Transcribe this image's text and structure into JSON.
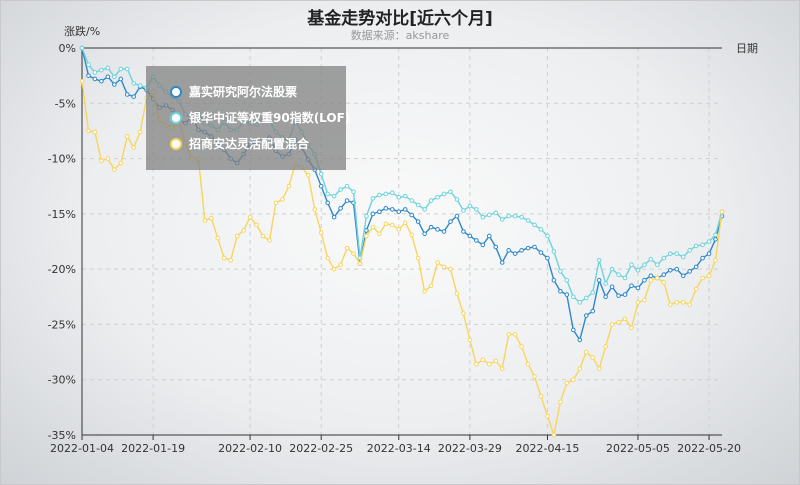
{
  "title": "基金走势对比[近六个月]",
  "subtitle": "数据来源：akshare",
  "chart_data": {
    "type": "line",
    "ylabel": "涨跌/%",
    "xlabel": "日期",
    "ylim": [
      -35,
      0
    ],
    "y_ticks": [
      "0%",
      "-5%",
      "-10%",
      "-15%",
      "-20%",
      "-25%",
      "-30%",
      "-35%"
    ],
    "x_ticks": [
      "2022-01-04",
      "2022-01-19",
      "2022-02-10",
      "2022-02-25",
      "2022-03-14",
      "2022-03-29",
      "2022-04-15",
      "2022-05-05",
      "2022-05-20"
    ],
    "x_count": 100,
    "legend_position": "top-left",
    "colors": {
      "s1": "#2e88c9",
      "s2": "#6ed3dc",
      "s3": "#f8d55c"
    },
    "series": [
      {
        "name": "嘉实研究阿尔法股票",
        "color": "#2e88c9",
        "values": [
          0.0,
          -2.5,
          -2.8,
          -3.0,
          -2.6,
          -3.3,
          -2.8,
          -4.2,
          -4.4,
          -3.5,
          -3.8,
          -4.6,
          -5.4,
          -5.2,
          -5.6,
          -6.5,
          -6.8,
          -6.2,
          -7.4,
          -7.6,
          -8.0,
          -8.6,
          -9.2,
          -10.0,
          -10.4,
          -9.6,
          -8.7,
          -8.6,
          -8.4,
          -8.1,
          -9.3,
          -9.8,
          -9.6,
          -8.3,
          -9.0,
          -10.1,
          -11.0,
          -12.5,
          -14.0,
          -15.3,
          -14.5,
          -13.8,
          -14.0,
          -19.5,
          -16.5,
          -15.0,
          -14.8,
          -14.5,
          -14.6,
          -14.8,
          -14.6,
          -15.1,
          -15.7,
          -16.8,
          -16.2,
          -16.4,
          -16.6,
          -15.7,
          -15.2,
          -16.6,
          -17.0,
          -17.4,
          -17.8,
          -17.0,
          -18.0,
          -19.4,
          -18.3,
          -18.6,
          -18.3,
          -18.1,
          -18.0,
          -18.5,
          -19.0,
          -21.0,
          -22.0,
          -22.3,
          -25.5,
          -26.4,
          -24.2,
          -23.8,
          -21.0,
          -22.5,
          -21.6,
          -22.4,
          -22.3,
          -21.5,
          -21.7,
          -21.0,
          -20.6,
          -20.8,
          -20.5,
          -20.1,
          -20.0,
          -20.6,
          -20.2,
          -19.8,
          -19.0,
          -18.6,
          -17.3,
          -15.2
        ]
      },
      {
        "name": "银华中证等权重90指数(LOF)",
        "color": "#6ed3dc",
        "values": [
          0.0,
          -1.5,
          -2.2,
          -2.0,
          -1.8,
          -2.6,
          -1.9,
          -1.9,
          -3.2,
          -3.4,
          -3.6,
          -2.6,
          -3.4,
          -4.0,
          -4.4,
          -4.8,
          -6.0,
          -6.3,
          -5.9,
          -6.8,
          -7.0,
          -7.4,
          -6.7,
          -7.4,
          -7.4,
          -6.7,
          -6.8,
          -6.9,
          -6.5,
          -6.6,
          -7.6,
          -8.1,
          -8.4,
          -6.6,
          -7.6,
          -8.8,
          -9.6,
          -11.4,
          -13.2,
          -13.4,
          -12.8,
          -12.5,
          -13.0,
          -19.0,
          -15.2,
          -13.6,
          -13.3,
          -13.2,
          -13.1,
          -13.5,
          -13.4,
          -13.8,
          -14.2,
          -14.6,
          -13.8,
          -13.5,
          -13.2,
          -13.0,
          -13.7,
          -14.7,
          -14.3,
          -14.6,
          -15.3,
          -15.1,
          -14.9,
          -15.5,
          -15.2,
          -15.2,
          -15.3,
          -15.6,
          -16.0,
          -16.4,
          -17.0,
          -18.4,
          -20.2,
          -21.0,
          -22.5,
          -23.0,
          -22.6,
          -22.1,
          -19.2,
          -21.3,
          -20.0,
          -20.5,
          -20.8,
          -19.6,
          -20.1,
          -19.6,
          -19.1,
          -19.6,
          -19.0,
          -18.6,
          -18.6,
          -18.9,
          -18.3,
          -17.9,
          -17.8,
          -17.5,
          -16.9,
          -14.8
        ]
      },
      {
        "name": "招商安达灵活配置混合",
        "color": "#f8d55c",
        "values": [
          -3.0,
          -7.5,
          -7.6,
          -10.2,
          -10.0,
          -11.0,
          -10.4,
          -8.0,
          -9.0,
          -7.6,
          -4.5,
          -4.0,
          -6.5,
          -7.0,
          -7.2,
          -6.6,
          -8.6,
          -10.0,
          -10.0,
          -15.6,
          -15.4,
          -17.2,
          -19.0,
          -19.2,
          -17.0,
          -16.5,
          -15.3,
          -16.0,
          -17.0,
          -17.4,
          -14.0,
          -13.7,
          -12.5,
          -10.5,
          -10.8,
          -11.5,
          -14.6,
          -16.7,
          -19.0,
          -20.0,
          -19.6,
          -18.1,
          -18.6,
          -19.5,
          -17.0,
          -16.2,
          -16.8,
          -15.9,
          -16.0,
          -16.4,
          -15.8,
          -16.9,
          -19.0,
          -22.0,
          -21.5,
          -19.4,
          -19.8,
          -20.0,
          -22.2,
          -24.0,
          -26.4,
          -28.6,
          -28.2,
          -28.6,
          -28.3,
          -29.0,
          -25.9,
          -25.9,
          -27.0,
          -28.6,
          -29.7,
          -31.5,
          -33.3,
          -35.0,
          -32.0,
          -30.3,
          -30.0,
          -29.0,
          -27.5,
          -28.0,
          -29.0,
          -27.0,
          -25.0,
          -24.8,
          -24.5,
          -25.3,
          -23.0,
          -22.8,
          -21.0,
          -20.8,
          -21.2,
          -23.2,
          -23.0,
          -23.0,
          -23.2,
          -21.8,
          -20.8,
          -20.6,
          -19.2,
          -14.8
        ]
      }
    ]
  }
}
